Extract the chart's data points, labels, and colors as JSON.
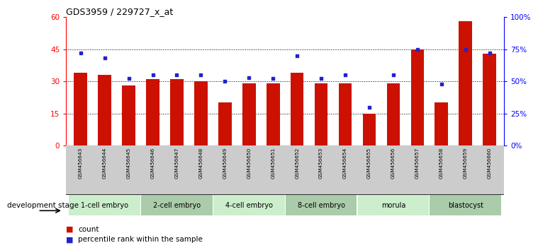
{
  "title": "GDS3959 / 229727_x_at",
  "samples": [
    "GSM456643",
    "GSM456644",
    "GSM456645",
    "GSM456646",
    "GSM456647",
    "GSM456648",
    "GSM456649",
    "GSM456650",
    "GSM456651",
    "GSM456652",
    "GSM456653",
    "GSM456654",
    "GSM456655",
    "GSM456656",
    "GSM456657",
    "GSM456658",
    "GSM456659",
    "GSM456660"
  ],
  "counts": [
    34,
    33,
    28,
    31,
    31,
    30,
    20,
    29,
    29,
    34,
    29,
    29,
    15,
    29,
    45,
    20,
    58,
    43
  ],
  "percentiles": [
    72,
    68,
    52,
    55,
    55,
    55,
    50,
    53,
    52,
    70,
    52,
    55,
    30,
    55,
    75,
    48,
    75,
    72
  ],
  "bar_color": "#cc1100",
  "dot_color": "#2222cc",
  "ylim_left": [
    0,
    60
  ],
  "ylim_right": [
    0,
    100
  ],
  "yticks_left": [
    0,
    15,
    30,
    45,
    60
  ],
  "yticks_right": [
    0,
    25,
    50,
    75,
    100
  ],
  "ytick_labels_right": [
    "0%",
    "25%",
    "50%",
    "75%",
    "100%"
  ],
  "stages": [
    {
      "label": "1-cell embryo",
      "start": 0,
      "end": 3,
      "color": "#cceecc"
    },
    {
      "label": "2-cell embryo",
      "start": 3,
      "end": 6,
      "color": "#aaccaa"
    },
    {
      "label": "4-cell embryo",
      "start": 6,
      "end": 9,
      "color": "#cceecc"
    },
    {
      "label": "8-cell embryo",
      "start": 9,
      "end": 12,
      "color": "#aaccaa"
    },
    {
      "label": "morula",
      "start": 12,
      "end": 15,
      "color": "#cceecc"
    },
    {
      "label": "blastocyst",
      "start": 15,
      "end": 18,
      "color": "#aaccaa"
    }
  ],
  "xlabel_stage": "development stage",
  "legend_count": "count",
  "legend_pct": "percentile rank within the sample",
  "bg_color": "#ffffff",
  "bar_width": 0.55,
  "tick_bg": "#cccccc",
  "grid_color": "#000000",
  "n": 18
}
